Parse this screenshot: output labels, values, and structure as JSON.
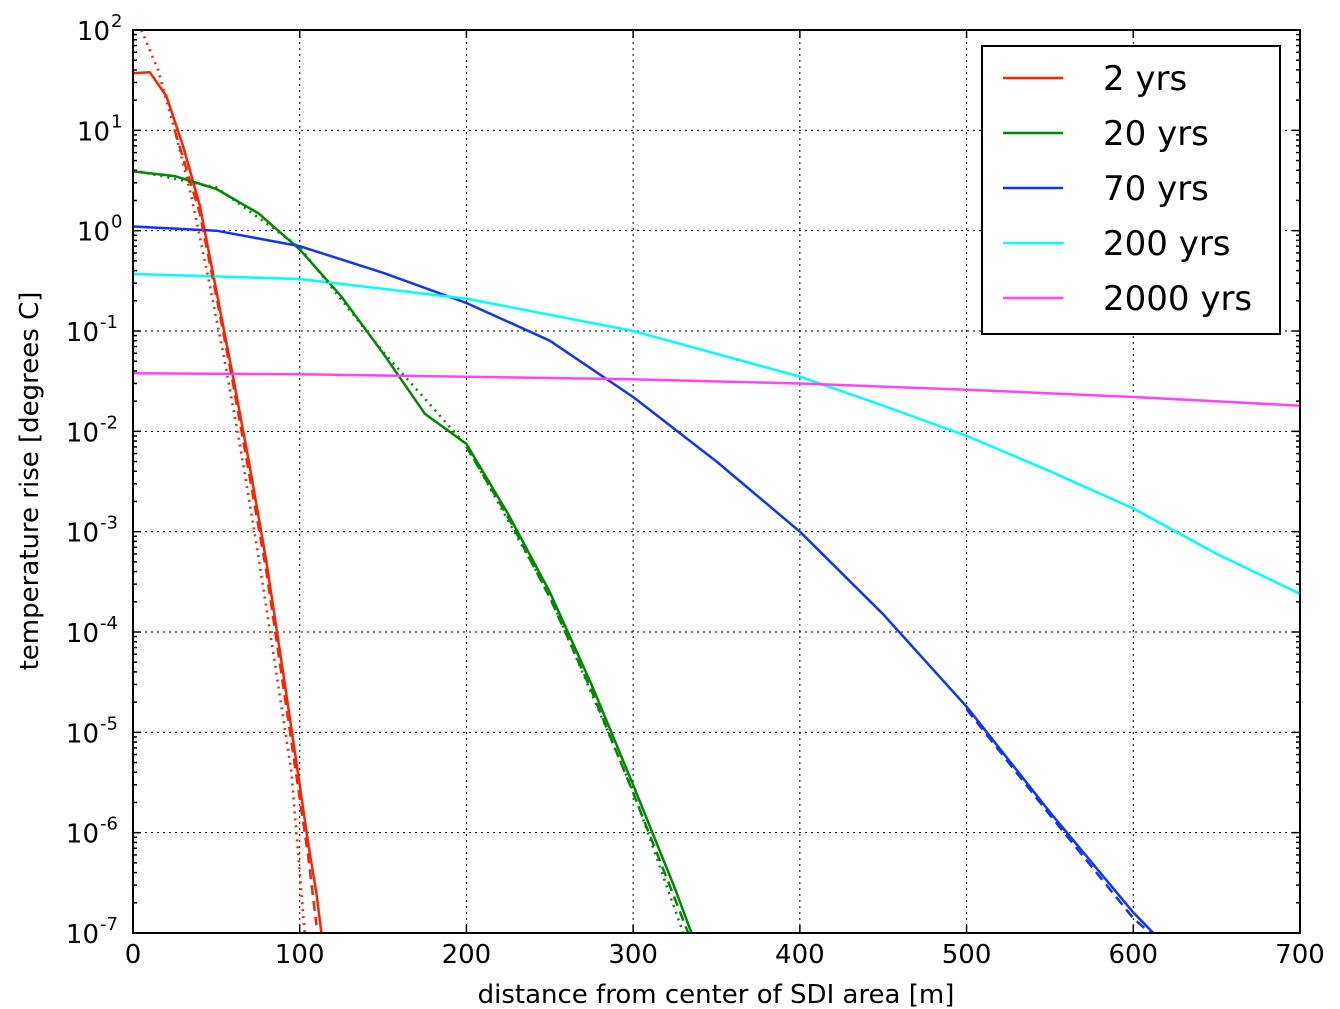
{
  "chart_data": {
    "type": "line",
    "title": "",
    "xlabel": "distance from center of SDI area [m]",
    "ylabel": "temperature rise [degrees C]",
    "xlim": [
      0,
      700
    ],
    "ylim": [
      1e-07,
      100
    ],
    "yscale": "log",
    "grid": true,
    "legend_position": "top-right",
    "x_ticks": [
      "0",
      "100",
      "200",
      "300",
      "400",
      "500",
      "600",
      "700"
    ],
    "y_ticks": [
      {
        "base": "10",
        "exp": "2"
      },
      {
        "base": "10",
        "exp": "1"
      },
      {
        "base": "10",
        "exp": "0"
      },
      {
        "base": "10",
        "exp": "-1"
      },
      {
        "base": "10",
        "exp": "-2"
      },
      {
        "base": "10",
        "exp": "-3"
      },
      {
        "base": "10",
        "exp": "-4"
      },
      {
        "base": "10",
        "exp": "-5"
      },
      {
        "base": "10",
        "exp": "-6"
      },
      {
        "base": "10",
        "exp": "-7"
      }
    ],
    "series": [
      {
        "name": "2 yrs",
        "color": "#ff2200",
        "style": "solid",
        "x": [
          0,
          10,
          20,
          30,
          40,
          50,
          60,
          70,
          80,
          90,
          100,
          105,
          110,
          113
        ],
        "y": [
          37,
          38,
          22,
          7,
          1.8,
          0.25,
          0.035,
          0.0045,
          0.0005,
          4e-05,
          3e-06,
          8e-07,
          2.5e-07,
          1e-07
        ]
      },
      {
        "name": "20 yrs",
        "color": "#008800",
        "style": "solid",
        "x": [
          0,
          25,
          50,
          75,
          100,
          125,
          150,
          175,
          200,
          225,
          250,
          275,
          300,
          325,
          335
        ],
        "y": [
          3.9,
          3.5,
          2.6,
          1.5,
          0.65,
          0.22,
          0.06,
          0.015,
          0.0075,
          0.0015,
          0.00025,
          3e-05,
          3e-06,
          2.8e-07,
          1e-07
        ]
      },
      {
        "name": "70 yrs",
        "color": "#1133ff",
        "style": "solid",
        "x": [
          0,
          50,
          100,
          150,
          200,
          250,
          300,
          350,
          400,
          450,
          500,
          550,
          600,
          612
        ],
        "y": [
          1.1,
          1.0,
          0.7,
          0.38,
          0.19,
          0.08,
          0.022,
          0.005,
          0.001,
          0.00015,
          1.8e-05,
          1.6e-06,
          1.6e-07,
          1e-07
        ]
      },
      {
        "name": "200 yrs",
        "color": "#00ffff",
        "style": "solid",
        "x": [
          0,
          100,
          200,
          300,
          400,
          450,
          500,
          550,
          600,
          650,
          700
        ],
        "y": [
          0.37,
          0.33,
          0.21,
          0.1,
          0.035,
          0.018,
          0.009,
          0.004,
          0.0017,
          0.0006,
          0.00024
        ]
      },
      {
        "name": "2000 yrs",
        "color": "#ff44ff",
        "style": "solid",
        "x": [
          0,
          100,
          200,
          300,
          400,
          500,
          600,
          700
        ],
        "y": [
          0.038,
          0.037,
          0.035,
          0.033,
          0.03,
          0.026,
          0.022,
          0.018
        ]
      },
      {
        "color": "#ff2200",
        "style": "dashed",
        "x": [
          25,
          40,
          50,
          60,
          70,
          80,
          90,
          100,
          105,
          110
        ],
        "y": [
          10,
          1.5,
          0.22,
          0.03,
          0.0035,
          0.0004,
          3e-05,
          2.2e-06,
          6e-07,
          1.2e-07
        ]
      },
      {
        "color": "#ff2200",
        "style": "dotted",
        "x": [
          5,
          15,
          25,
          35,
          45,
          55,
          65,
          75,
          85,
          95,
          103
        ],
        "y": [
          100,
          40,
          10,
          2.2,
          0.35,
          0.05,
          0.006,
          0.0006,
          5e-05,
          4e-06,
          1e-07
        ]
      },
      {
        "color": "#008800",
        "style": "dashed",
        "x": [
          200,
          225,
          250,
          275,
          300,
          325,
          333
        ],
        "y": [
          0.007,
          0.0014,
          0.00022,
          2.6e-05,
          2.5e-06,
          2.2e-07,
          1e-07
        ]
      },
      {
        "color": "#008800",
        "style": "dotted",
        "x": [
          0,
          50,
          100,
          150,
          200,
          250,
          300,
          330
        ],
        "y": [
          4.0,
          2.7,
          0.68,
          0.062,
          0.0072,
          0.00023,
          2.6e-06,
          1e-07
        ]
      },
      {
        "color": "#1133ff",
        "style": "dashed",
        "x": [
          500,
          550,
          600,
          610
        ],
        "y": [
          1.7e-05,
          1.5e-06,
          1.4e-07,
          1e-07
        ]
      }
    ]
  }
}
